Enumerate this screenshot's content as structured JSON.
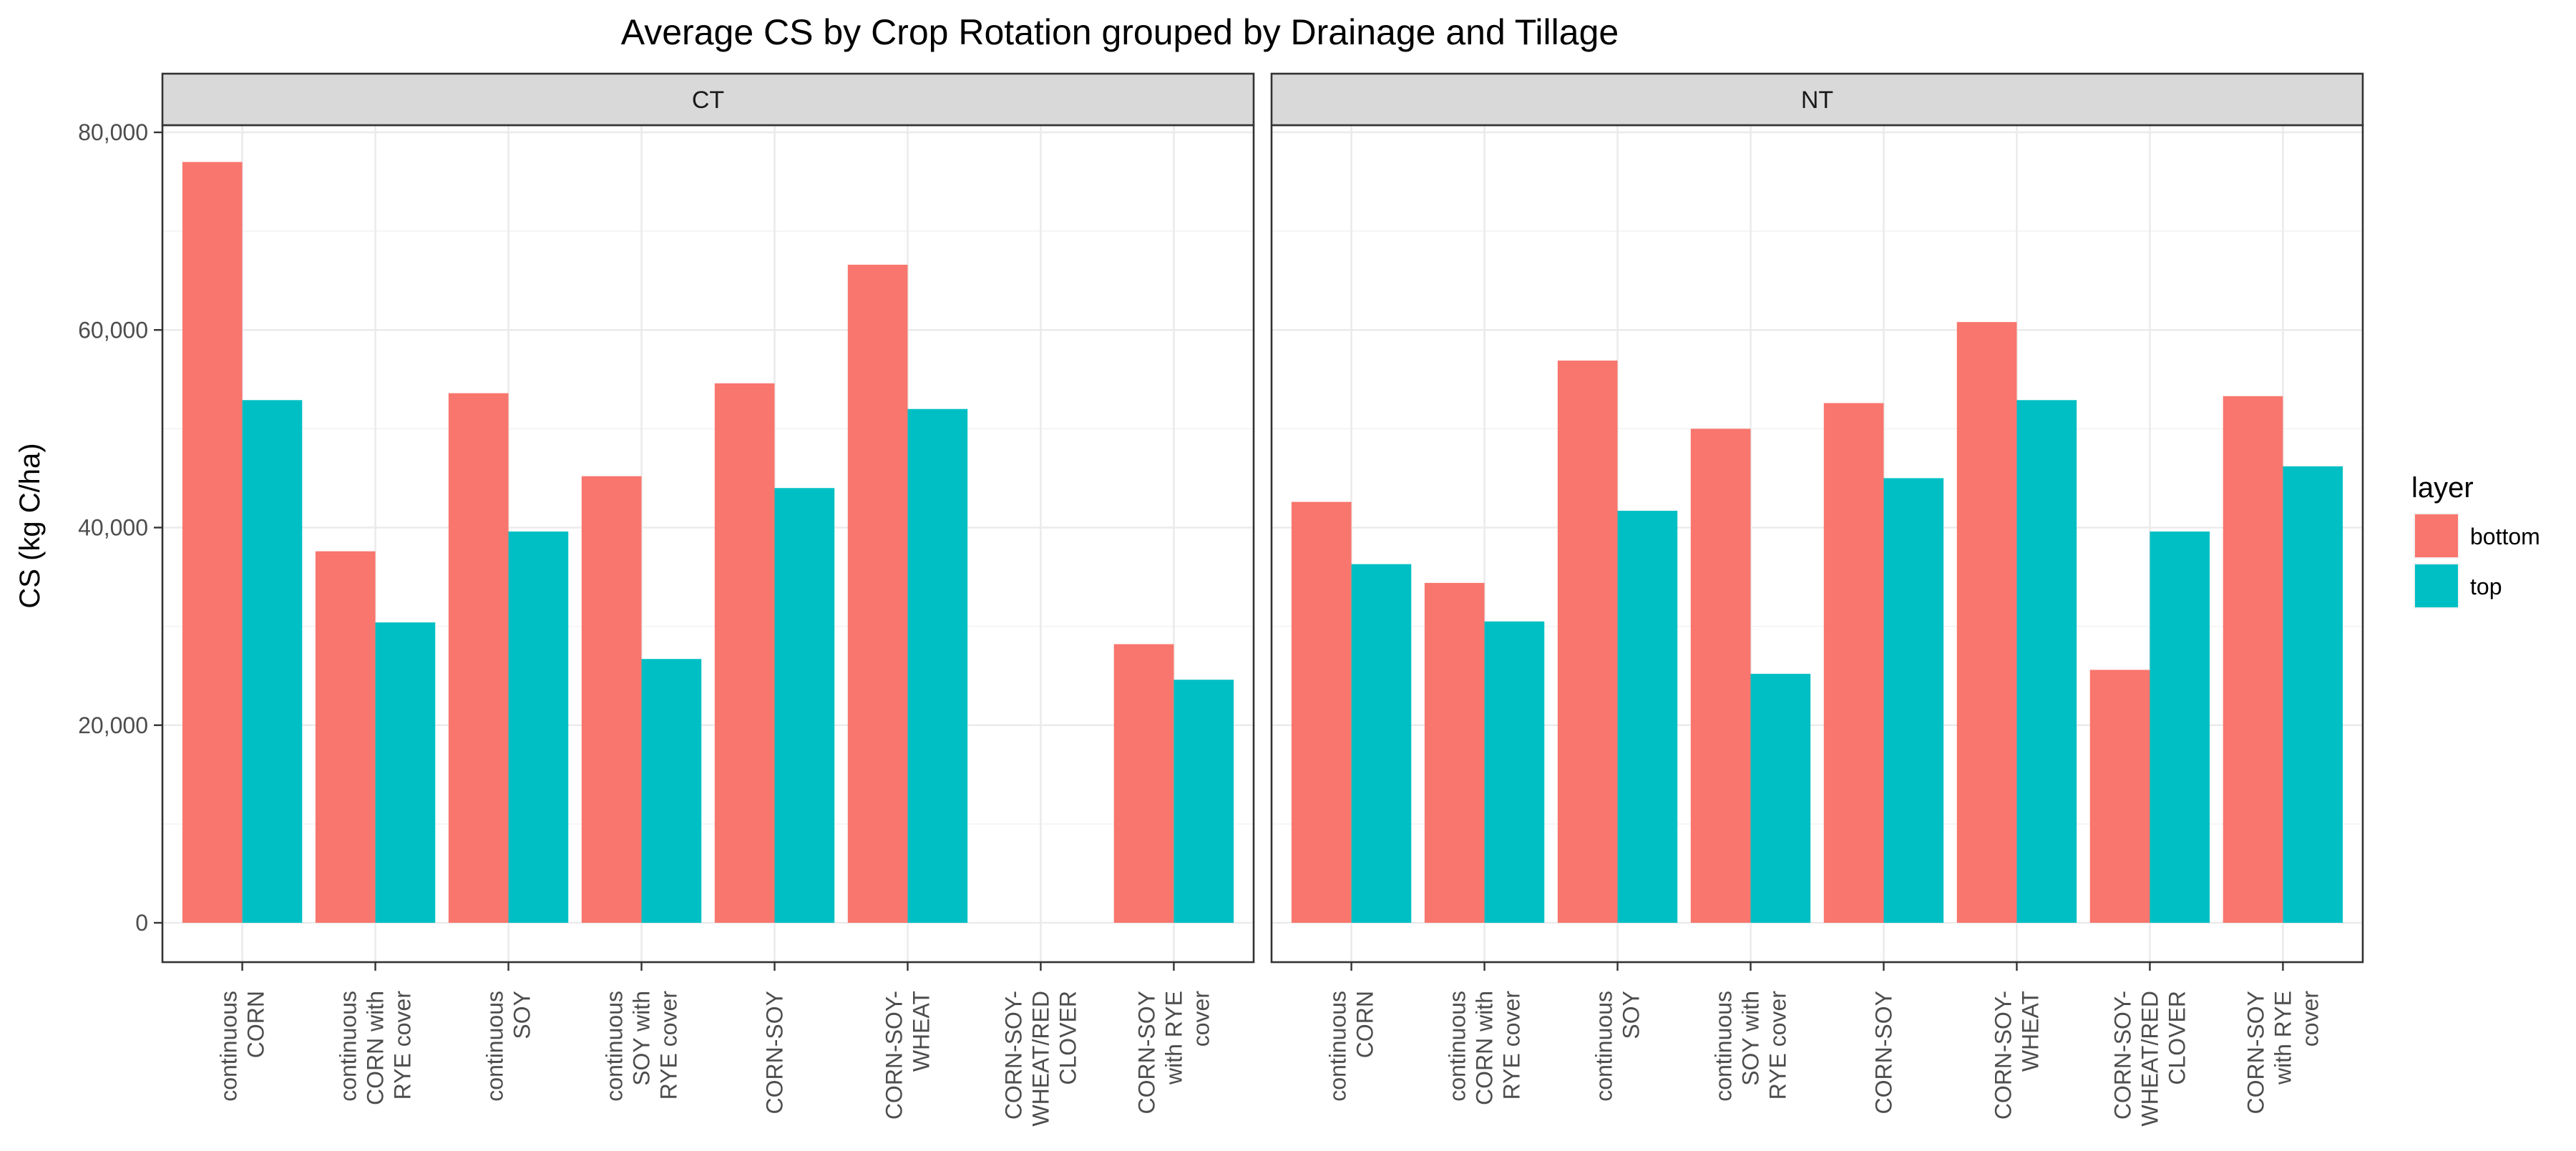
{
  "chart_data": {
    "type": "bar",
    "title": "Average CS by Crop Rotation grouped by Drainage and Tillage",
    "ylabel": "CS (kg C/ha)",
    "xlabel": "",
    "ylim": [
      0,
      86000
    ],
    "y_ticks": [
      0,
      20000,
      40000,
      60000,
      80000
    ],
    "y_tick_labels": [
      "0",
      "20,000",
      "40,000",
      "60,000",
      "80,000"
    ],
    "grid": true,
    "legend": {
      "title": "layer",
      "position": "right",
      "entries": [
        {
          "label": "bottom",
          "color": "#F8766D"
        },
        {
          "label": "top",
          "color": "#00BFC4"
        }
      ]
    },
    "categories": [
      [
        "continuous",
        "CORN"
      ],
      [
        "continuous",
        "CORN with",
        "RYE cover"
      ],
      [
        "continuous",
        "SOY"
      ],
      [
        "continuous",
        "SOY with",
        "RYE cover"
      ],
      [
        "CORN-SOY"
      ],
      [
        "CORN-SOY-",
        "WHEAT"
      ],
      [
        "CORN-SOY-",
        "WHEAT/RED",
        "CLOVER"
      ],
      [
        "CORN-SOY",
        "with RYE",
        "cover"
      ]
    ],
    "facets": [
      {
        "label": "CT",
        "series": [
          {
            "name": "bottom",
            "values": [
              77000,
              37600,
              53600,
              45200,
              54600,
              66600,
              null,
              28200
            ]
          },
          {
            "name": "top",
            "values": [
              52900,
              30400,
              39600,
              26700,
              44000,
              52000,
              null,
              24600
            ]
          }
        ]
      },
      {
        "label": "NT",
        "series": [
          {
            "name": "bottom",
            "values": [
              42600,
              34400,
              56900,
              50000,
              52600,
              60800,
              25600,
              53300
            ]
          },
          {
            "name": "top",
            "values": [
              36300,
              30500,
              41700,
              25200,
              45000,
              52900,
              39600,
              46200
            ]
          }
        ]
      }
    ]
  }
}
